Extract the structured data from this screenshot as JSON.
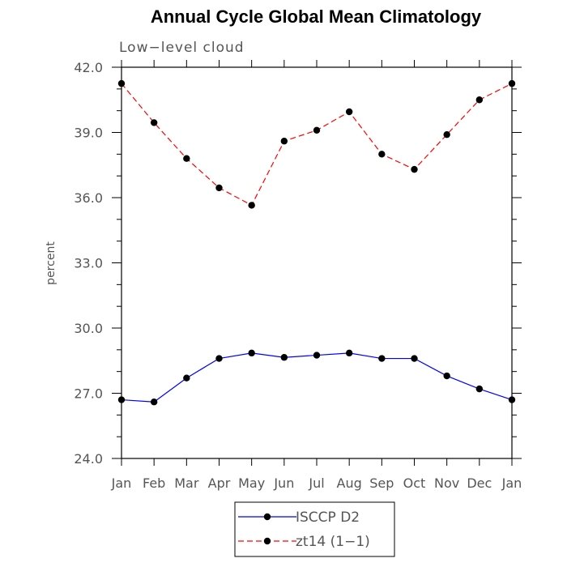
{
  "chart_data": {
    "type": "line",
    "title": "Annual Cycle Global Mean Climatology",
    "subtitle": "Low−level cloud",
    "ylabel": "percent",
    "xlabel": "",
    "categories": [
      "Jan",
      "Feb",
      "Mar",
      "Apr",
      "May",
      "Jun",
      "Jul",
      "Aug",
      "Sep",
      "Oct",
      "Nov",
      "Dec",
      "Jan"
    ],
    "ylim": [
      24.0,
      42.0
    ],
    "yticks": [
      "24.0",
      "27.0",
      "30.0",
      "33.0",
      "36.0",
      "39.0",
      "42.0"
    ],
    "grid": false,
    "legend_position": "bottom",
    "series": [
      {
        "name": "ISCCP D2",
        "color": "#0000ff",
        "dashed": false,
        "values": [
          26.7,
          26.6,
          27.7,
          28.6,
          28.85,
          28.65,
          28.75,
          28.85,
          28.6,
          28.6,
          27.8,
          27.2,
          26.7
        ]
      },
      {
        "name": "zt14 (1−1)",
        "color": "#ff0000",
        "dashed": true,
        "values": [
          41.25,
          39.45,
          37.8,
          36.45,
          35.65,
          38.6,
          39.1,
          39.95,
          38.0,
          37.3,
          38.9,
          40.5,
          41.25
        ]
      }
    ]
  }
}
